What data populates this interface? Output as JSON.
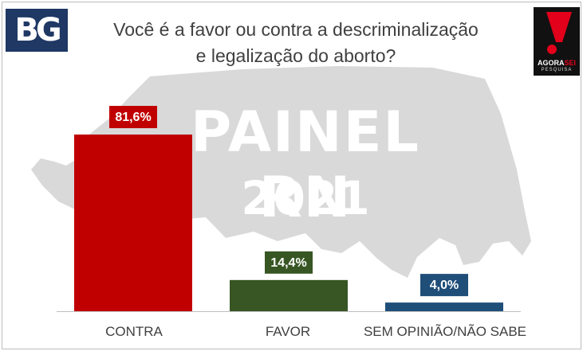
{
  "brand": {
    "logo_text": "BG",
    "agora_text": "AGORA",
    "agora_suffix": "SEI",
    "agora_sub": "PESQUISA"
  },
  "watermark": {
    "line1": "PAINEL RN",
    "line2": "2021"
  },
  "colors": {
    "map": "#d9d9d9",
    "title": "#404040",
    "axis": "#bfbfbf",
    "logo_bg": "#1f3864",
    "agora_accent": "#e2001a"
  },
  "chart_data": {
    "type": "bar",
    "title_lines": [
      "Você é a favor ou contra a descriminalização",
      "e legalização do aborto?"
    ],
    "categories": [
      "CONTRA",
      "FAVOR",
      "SEM OPINIÃO/NÃO SABE"
    ],
    "values": [
      81.6,
      14.4,
      4.0
    ],
    "value_labels": [
      "81,6%",
      "14,4%",
      "4,0%"
    ],
    "colors": [
      "#c00000",
      "#375623",
      "#1f4e79"
    ],
    "unit": "%",
    "xlabel": "",
    "ylabel": "",
    "ylim": [
      0,
      100
    ],
    "grid": false,
    "legend": "none"
  }
}
